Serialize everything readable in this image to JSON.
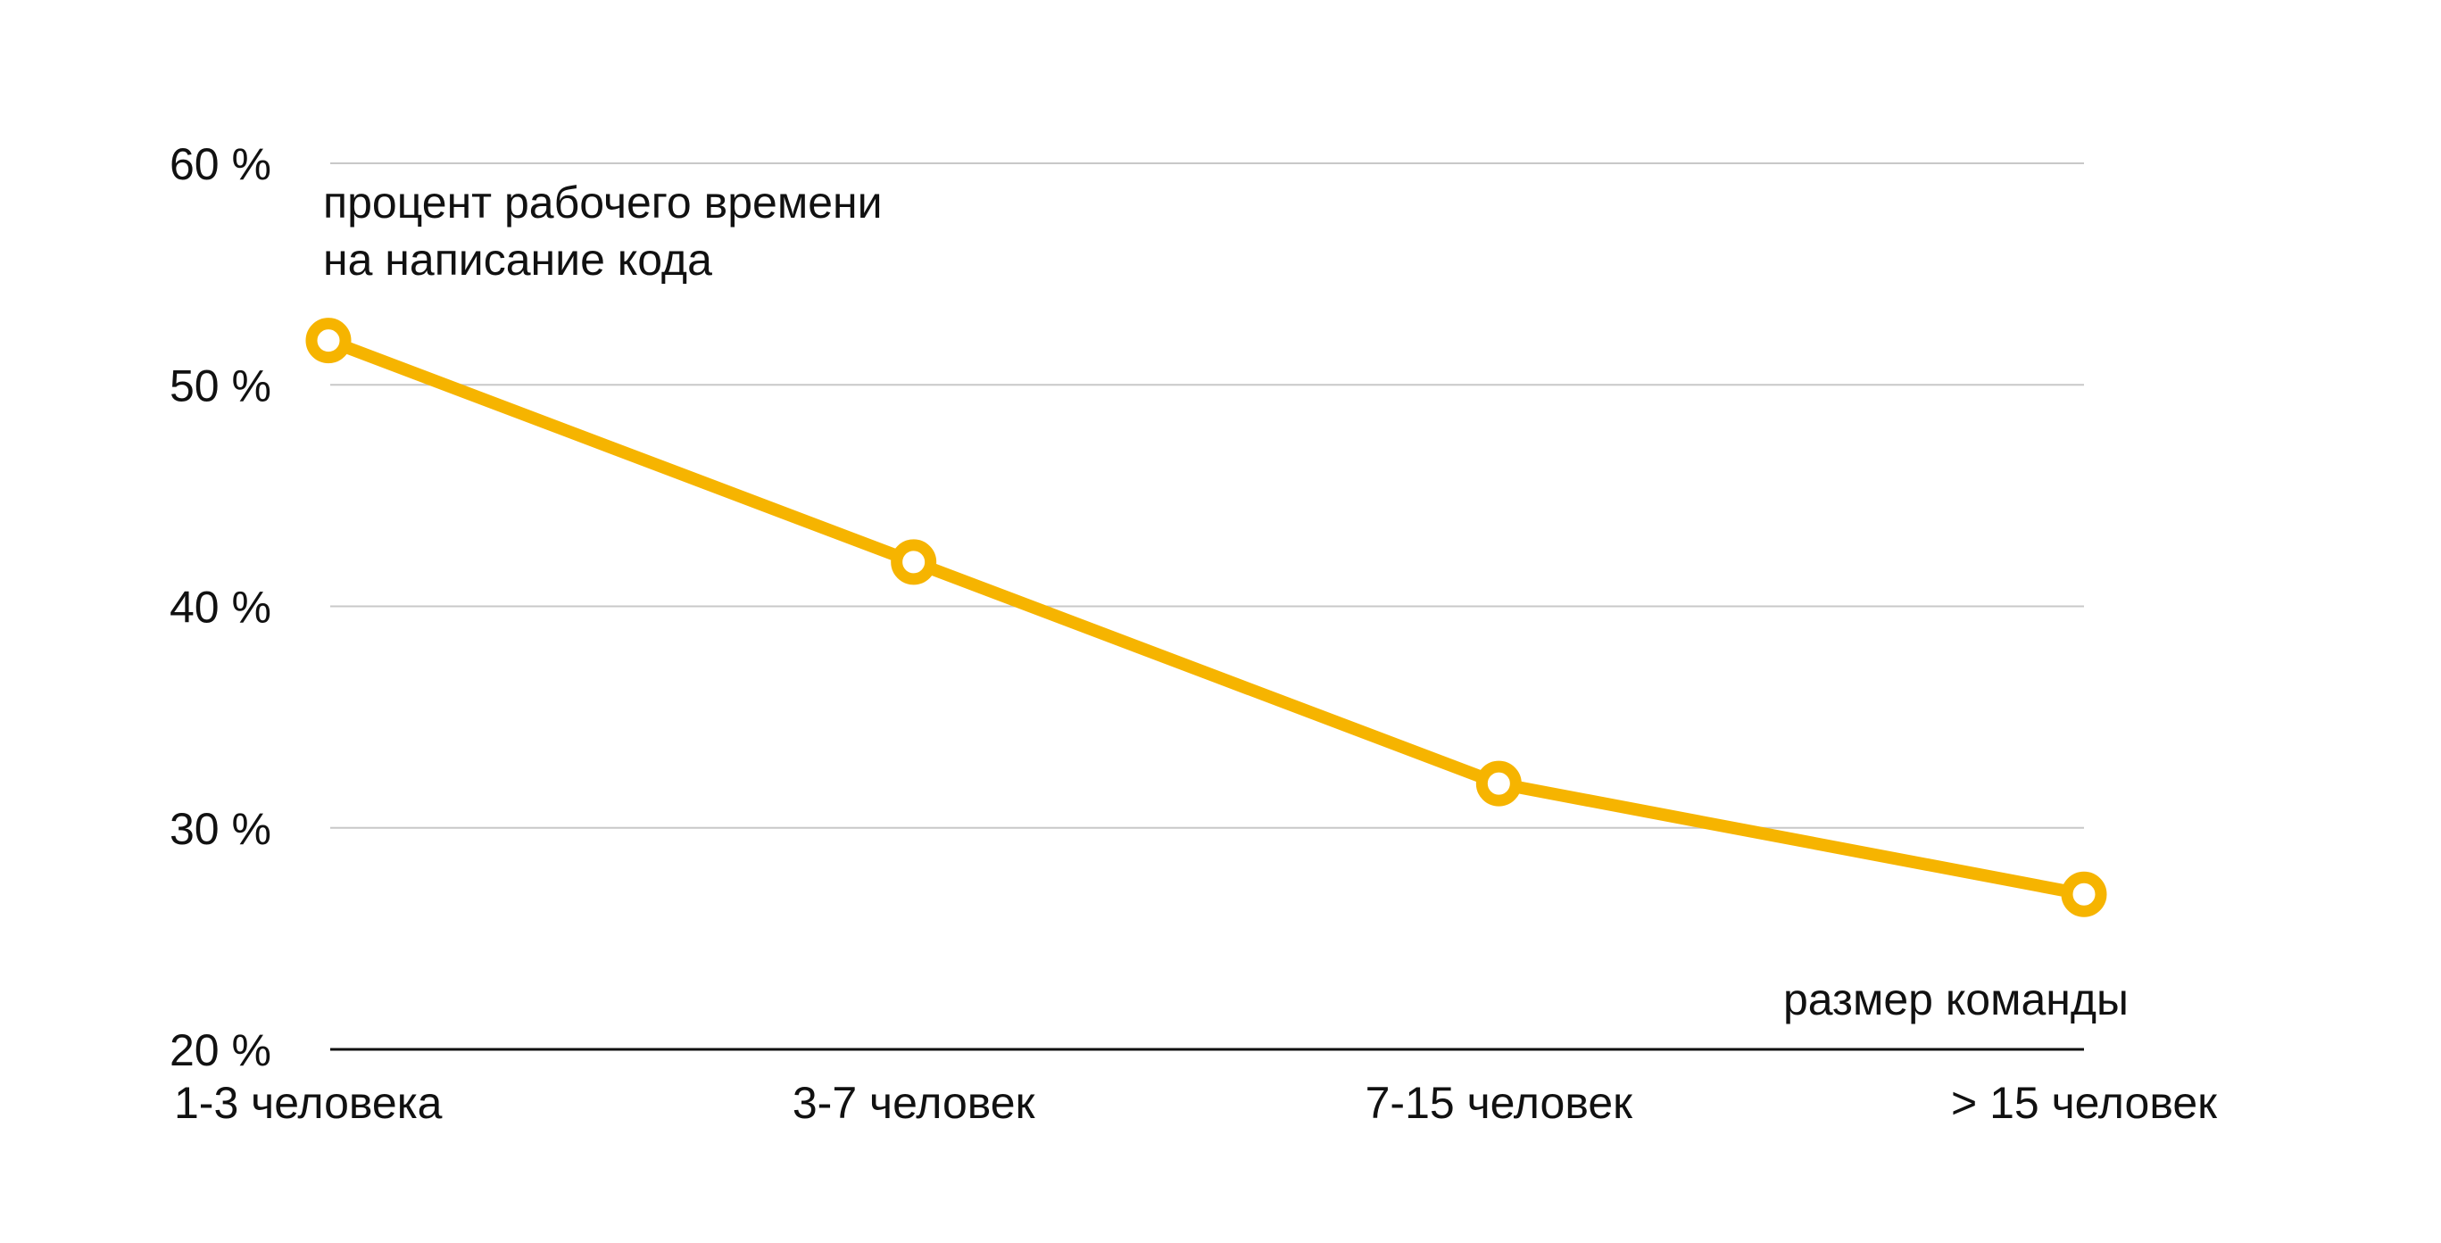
{
  "chart_data": {
    "type": "line",
    "ylabel": [
      "процент рабочего времени",
      "на написание кода"
    ],
    "xlabel": "размер команды",
    "categories": [
      "1-3 человека",
      "3-7 человек",
      "7-15 человек",
      "> 15 человек"
    ],
    "series": [
      {
        "values": [
          52,
          42,
          32,
          27
        ]
      }
    ],
    "ylim": [
      20,
      60
    ],
    "yticks": [
      20,
      30,
      40,
      50,
      60
    ],
    "ytick_labels": [
      "20 %",
      "30 %",
      "40 %",
      "50 %",
      "60 %"
    ],
    "grid": true,
    "colors": {
      "line": "#F6B400",
      "grid": "#C8C8C8",
      "axis": "#111111",
      "text": "#111111",
      "marker_fill": "#FFFFFF"
    }
  }
}
